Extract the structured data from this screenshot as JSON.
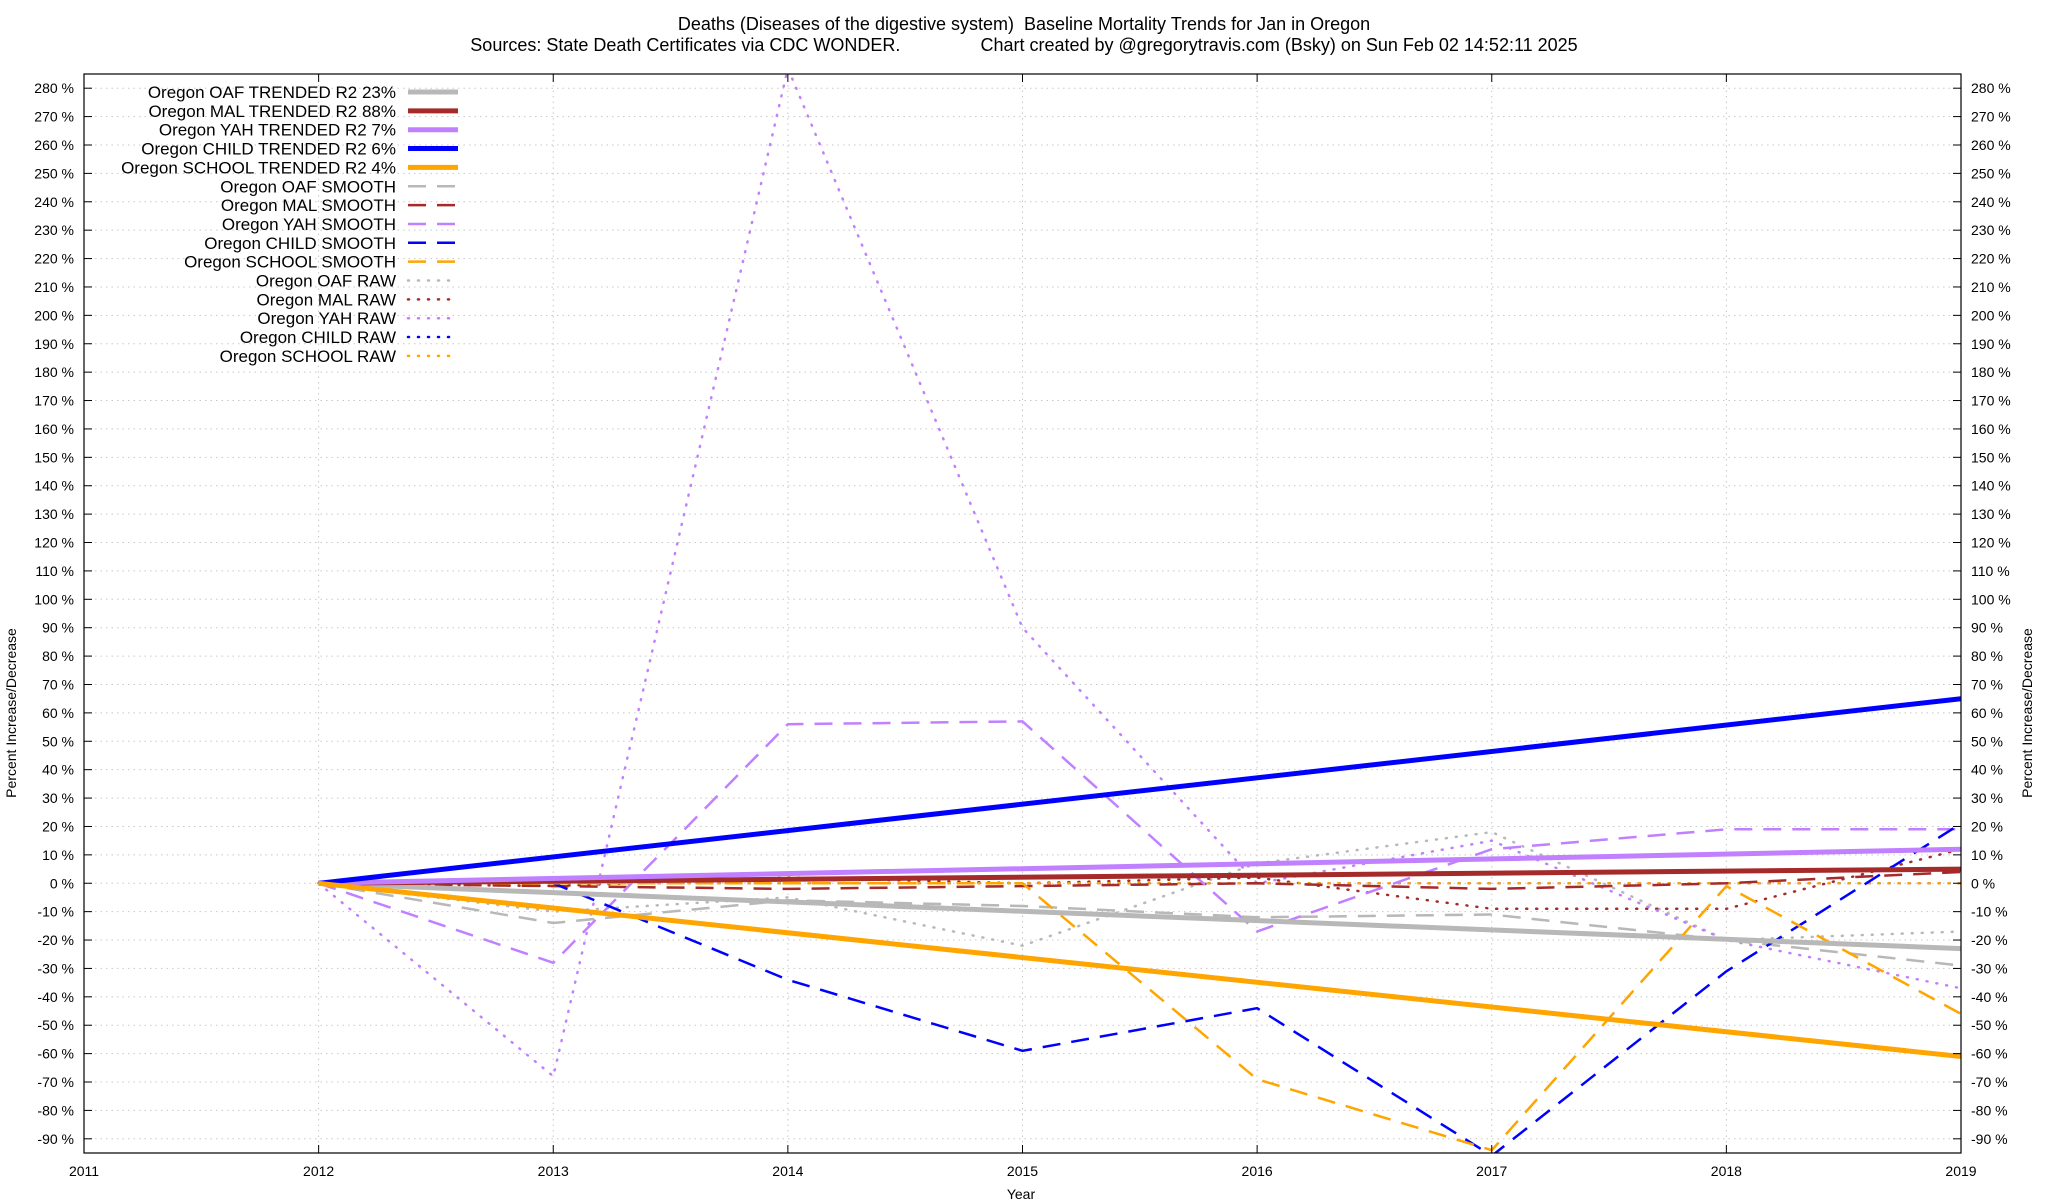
{
  "chart_data": {
    "type": "line",
    "title": "Deaths (Diseases of the digestive system)  Baseline Mortality Trends for Jan in Oregon",
    "subtitle": "Sources: State Death Certificates via CDC WONDER.                Chart created by @gregorytravis.com (Bsky) on Sun Feb 02 14:52:11 2025",
    "xlabel": "Year",
    "ylabel": "Percent Increase/Decrease",
    "xlim": [
      2011,
      2019
    ],
    "ylim": [
      -95,
      285
    ],
    "x_ticks": [
      2011,
      2012,
      2013,
      2014,
      2015,
      2016,
      2017,
      2018,
      2019
    ],
    "y_ticks": [
      -90,
      -80,
      -70,
      -60,
      -50,
      -40,
      -30,
      -20,
      -10,
      0,
      10,
      20,
      30,
      40,
      50,
      60,
      70,
      80,
      90,
      100,
      110,
      120,
      130,
      140,
      150,
      160,
      170,
      180,
      190,
      200,
      210,
      220,
      230,
      240,
      250,
      260,
      270,
      280
    ],
    "y_tick_suffix": " %",
    "grid": true,
    "legend_position": "top-left",
    "series": [
      {
        "name": "Oregon OAF TRENDED R2  23%",
        "style": "solid",
        "color": "#b8b8b8",
        "x": [
          2012,
          2019
        ],
        "values": [
          0,
          -23
        ]
      },
      {
        "name": "Oregon MAL TRENDED R2  88%",
        "style": "solid",
        "color": "#a52a2a",
        "x": [
          2012,
          2019
        ],
        "values": [
          0,
          5
        ]
      },
      {
        "name": "Oregon YAH TRENDED R2   7%",
        "style": "solid",
        "color": "#c080ff",
        "x": [
          2012,
          2019
        ],
        "values": [
          0,
          12
        ]
      },
      {
        "name": "Oregon CHILD TRENDED R2   6%",
        "style": "solid",
        "color": "#0000ff",
        "x": [
          2012,
          2019
        ],
        "values": [
          0,
          65
        ]
      },
      {
        "name": "Oregon SCHOOL TRENDED R2   4%",
        "style": "solid",
        "color": "#ffa500",
        "x": [
          2012,
          2019
        ],
        "values": [
          0,
          -61
        ]
      },
      {
        "name": "Oregon OAF SMOOTH",
        "style": "dashed",
        "color": "#b8b8b8",
        "x": [
          2012,
          2013,
          2014,
          2015,
          2016,
          2017,
          2018,
          2019
        ],
        "values": [
          0,
          -14,
          -6,
          -8,
          -12,
          -11,
          -20,
          -29
        ]
      },
      {
        "name": "Oregon MAL SMOOTH",
        "style": "dashed",
        "color": "#a52a2a",
        "x": [
          2012,
          2013,
          2014,
          2015,
          2016,
          2017,
          2018,
          2019
        ],
        "values": [
          0,
          -1,
          -2,
          -1,
          0,
          -2,
          0,
          4
        ]
      },
      {
        "name": "Oregon YAH SMOOTH",
        "style": "dashed",
        "color": "#c080ff",
        "x": [
          2012,
          2013,
          2014,
          2015,
          2016,
          2017,
          2018,
          2019
        ],
        "values": [
          0,
          -28,
          56,
          57,
          -17,
          12,
          19,
          19
        ]
      },
      {
        "name": "Oregon CHILD SMOOTH",
        "style": "dashed",
        "color": "#0000ff",
        "x": [
          2012,
          2013,
          2014,
          2015,
          2016,
          2017,
          2018,
          2019
        ],
        "values": [
          0,
          0,
          -34,
          -59,
          -44,
          -96,
          -31,
          21
        ]
      },
      {
        "name": "Oregon SCHOOL SMOOTH",
        "style": "dashed",
        "color": "#ffa500",
        "x": [
          2012,
          2013,
          2014,
          2015,
          2016,
          2017,
          2018,
          2019
        ],
        "values": [
          0,
          0,
          0,
          0,
          -69,
          -94,
          -1,
          -46
        ]
      },
      {
        "name": "Oregon OAF RAW",
        "style": "dotted",
        "color": "#b8b8b8",
        "x": [
          2012,
          2013,
          2014,
          2015,
          2016,
          2017,
          2018,
          2019
        ],
        "values": [
          0,
          -10,
          -5,
          -22,
          7,
          18,
          -20,
          -17
        ]
      },
      {
        "name": "Oregon MAL RAW",
        "style": "dotted",
        "color": "#a52a2a",
        "x": [
          2012,
          2013,
          2014,
          2015,
          2016,
          2017,
          2018,
          2019
        ],
        "values": [
          0,
          -1,
          2,
          0,
          2,
          -9,
          -9,
          12
        ]
      },
      {
        "name": "Oregon YAH RAW",
        "style": "dotted",
        "color": "#c080ff",
        "x": [
          2012,
          2013,
          2014,
          2015,
          2016,
          2017,
          2018,
          2019
        ],
        "values": [
          0,
          -68,
          287,
          90,
          0,
          15,
          -20,
          -37
        ]
      },
      {
        "name": "Oregon CHILD RAW",
        "style": "dotted",
        "color": "#0000ff",
        "x": [
          2012,
          2013,
          2014,
          2015,
          2016,
          2017,
          2018,
          2019
        ],
        "values": [
          0,
          0,
          0,
          0,
          0,
          0,
          0,
          0
        ]
      },
      {
        "name": "Oregon SCHOOL RAW",
        "style": "dotted",
        "color": "#ffa500",
        "x": [
          2012,
          2013,
          2014,
          2015,
          2016,
          2017,
          2018,
          2019
        ],
        "values": [
          0,
          0,
          0,
          0,
          0,
          0,
          0,
          0
        ]
      }
    ]
  }
}
